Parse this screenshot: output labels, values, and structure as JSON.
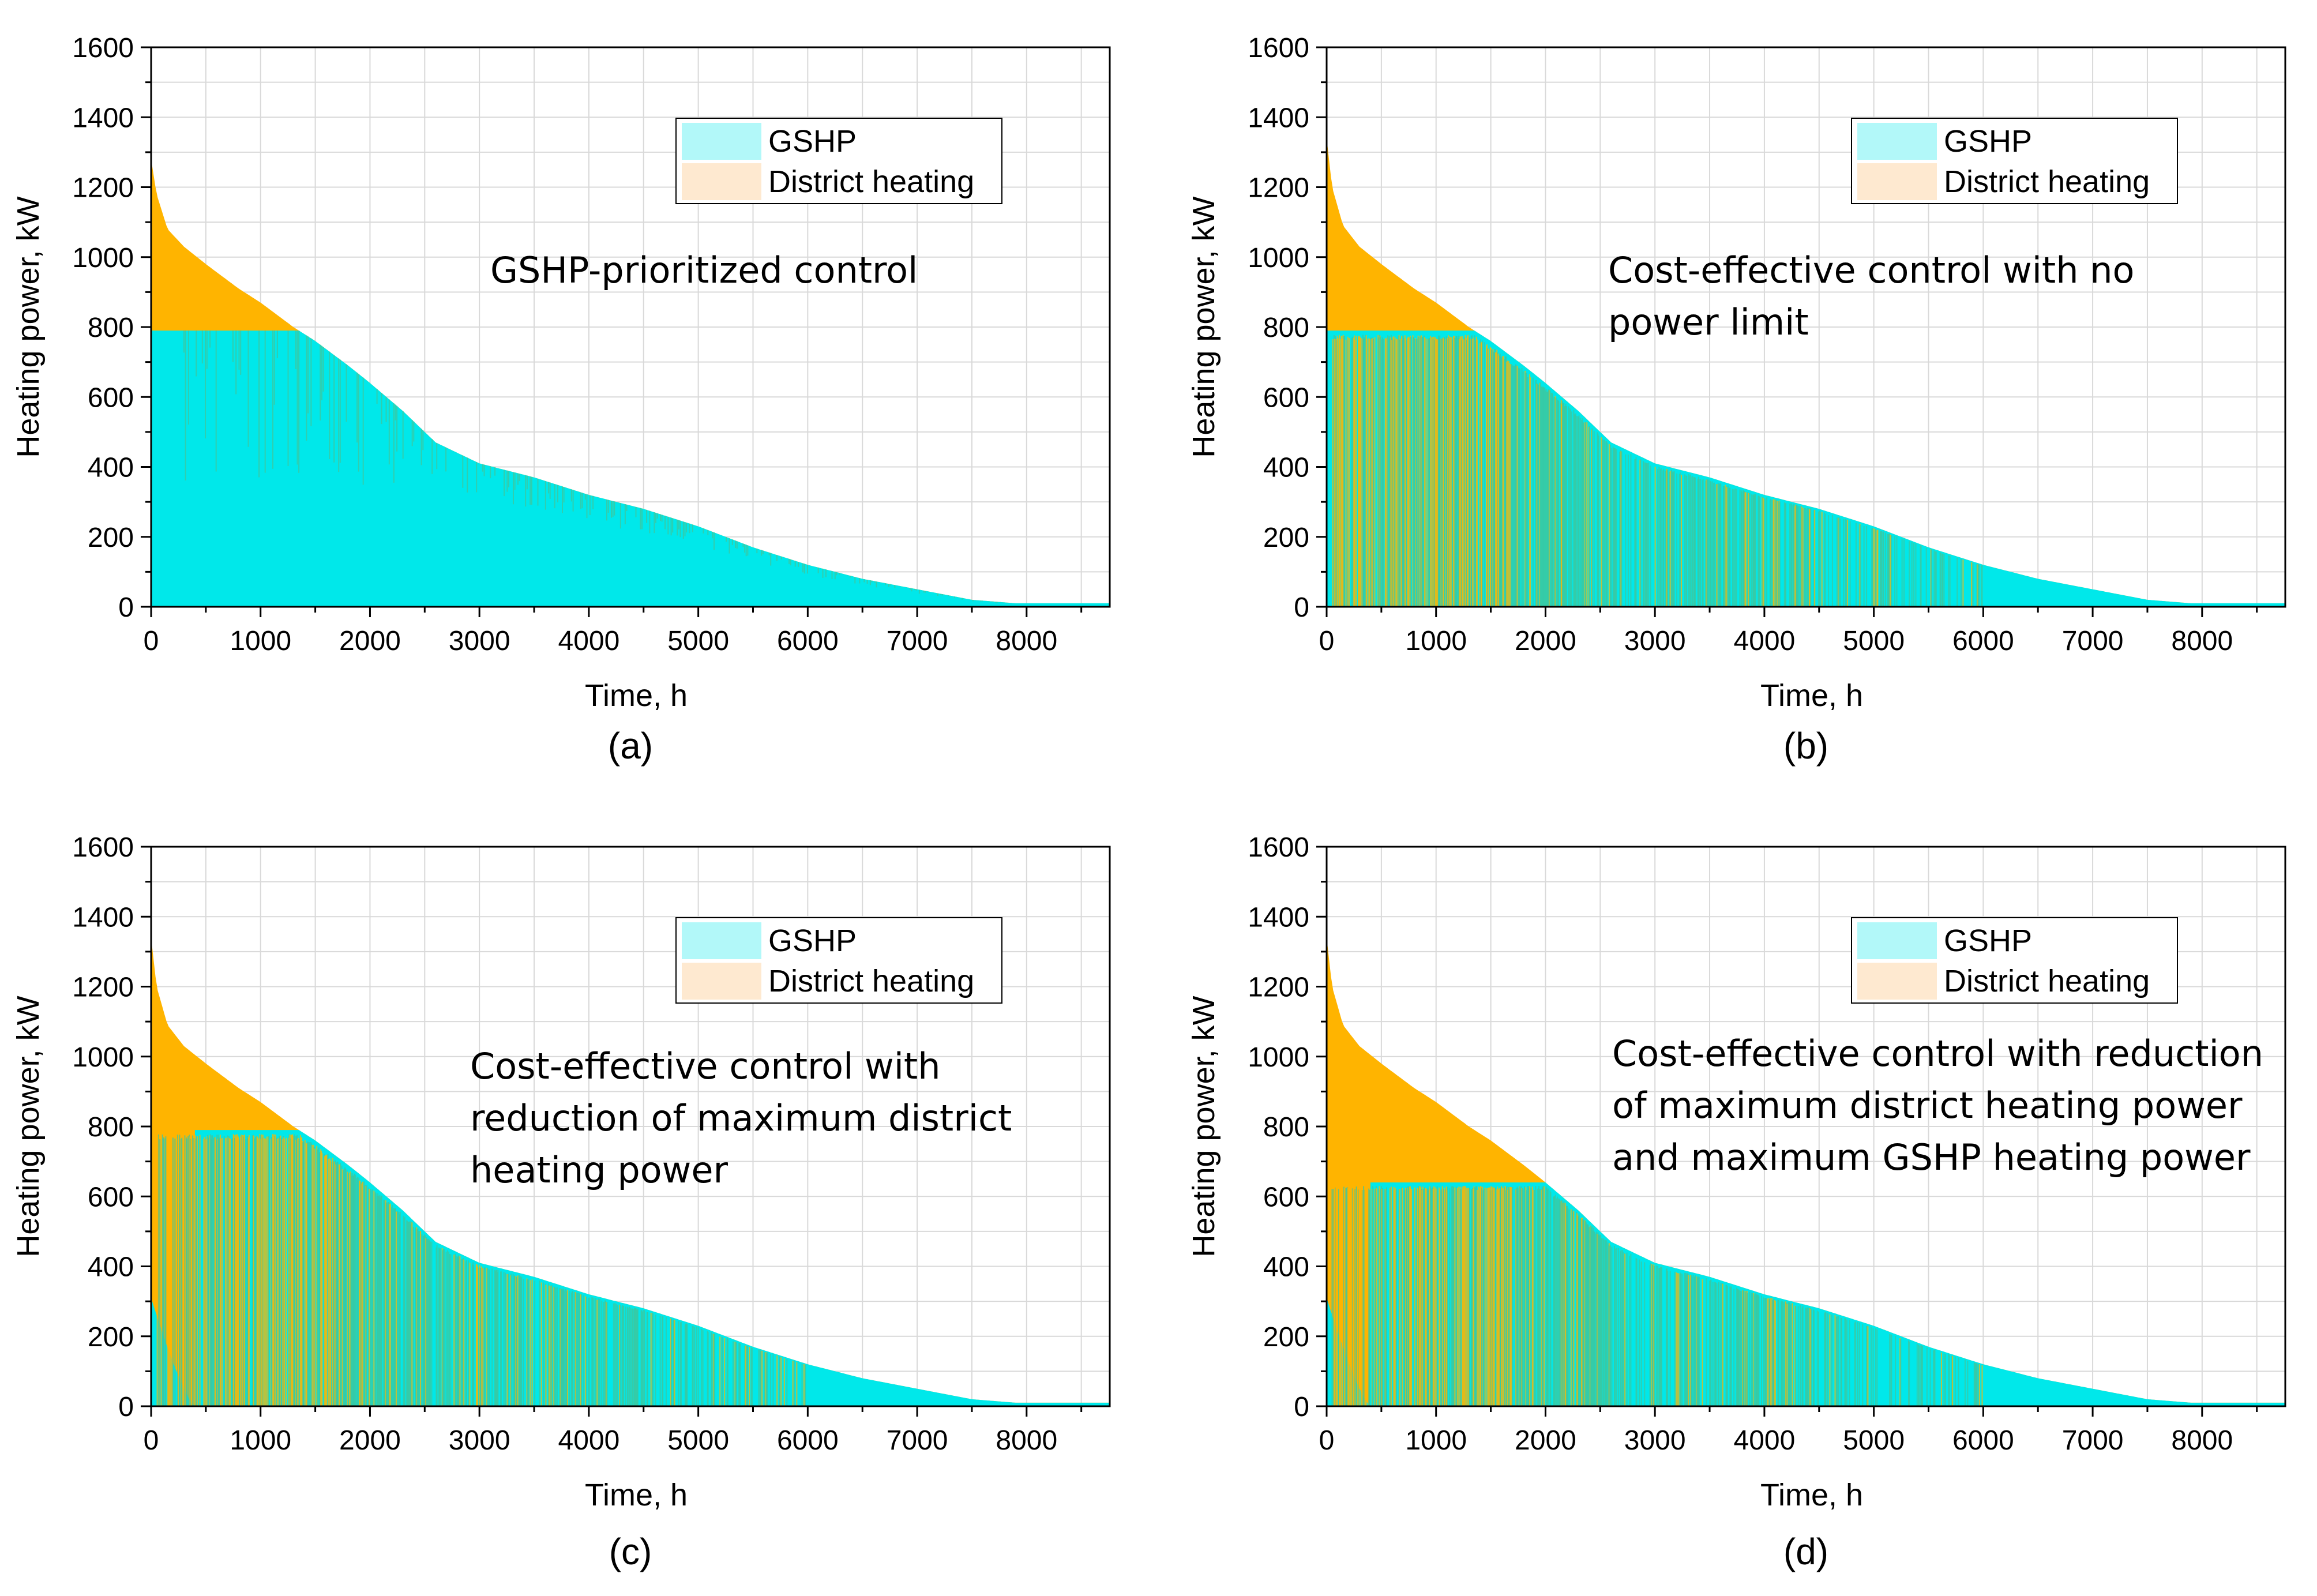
{
  "colors": {
    "gshp": "#00e8ea",
    "district": "#ffb400",
    "legend_gshp": "#b2f8f9",
    "legend_district": "#fee9d0",
    "mixed": "#3cc8a0",
    "grid": "#d9d9d9"
  },
  "chart_data": [
    {
      "id": "a",
      "type": "area",
      "panel_label": "(a)",
      "title": "",
      "annotation_lines": [
        "GSHP-prioritized control"
      ],
      "xlabel": "Time, h",
      "ylabel": "Heating power, kW",
      "xlim": [
        0,
        8760
      ],
      "ylim": [
        0,
        1600
      ],
      "xticks": [
        0,
        1000,
        2000,
        3000,
        4000,
        5000,
        6000,
        7000,
        8000
      ],
      "yticks": [
        0,
        200,
        400,
        600,
        800,
        1000,
        1200,
        1400,
        1600
      ],
      "legend": [
        "GSHP",
        "District heating"
      ],
      "legend_position": "top-right",
      "gshp_cap_kw": 790,
      "gshp_start_kw": 790,
      "gshp_fade_end_h": 0,
      "mixed_stripes_range": [],
      "total_load": {
        "x": [
          0,
          50,
          150,
          300,
          500,
          800,
          1000,
          1300,
          1500,
          1800,
          2000,
          2300,
          2600,
          2800,
          3000,
          3500,
          4000,
          4500,
          5000,
          5500,
          6000,
          6500,
          7000,
          7500,
          7900,
          8000,
          8760
        ],
        "y": [
          1280,
          1180,
          1080,
          1030,
          980,
          910,
          870,
          800,
          760,
          690,
          640,
          560,
          470,
          440,
          410,
          370,
          320,
          280,
          230,
          170,
          120,
          80,
          50,
          20,
          10,
          10,
          10
        ]
      }
    },
    {
      "id": "b",
      "type": "area",
      "panel_label": "(b)",
      "title": "",
      "annotation_lines": [
        "Cost-effective control with no",
        "power limit"
      ],
      "xlabel": "Time, h",
      "ylabel": "Heating power, kW",
      "xlim": [
        0,
        8760
      ],
      "ylim": [
        0,
        1600
      ],
      "xticks": [
        0,
        1000,
        2000,
        3000,
        4000,
        5000,
        6000,
        7000,
        8000
      ],
      "yticks": [
        0,
        200,
        400,
        600,
        800,
        1000,
        1200,
        1400,
        1600
      ],
      "legend": [
        "GSHP",
        "District heating"
      ],
      "legend_position": "top-right",
      "gshp_cap_kw": 790,
      "gshp_start_kw": 790,
      "gshp_fade_end_h": 0,
      "mixed_stripes_range": [
        50,
        6000
      ],
      "total_load": {
        "x": [
          0,
          50,
          150,
          300,
          500,
          800,
          1000,
          1300,
          1500,
          1800,
          2000,
          2300,
          2600,
          2800,
          3000,
          3500,
          4000,
          4500,
          5000,
          5500,
          6000,
          6500,
          7000,
          7500,
          7900,
          8000,
          8760
        ],
        "y": [
          1340,
          1200,
          1090,
          1030,
          980,
          910,
          870,
          800,
          760,
          690,
          640,
          560,
          470,
          440,
          410,
          370,
          320,
          280,
          230,
          170,
          120,
          80,
          50,
          20,
          10,
          10,
          10
        ]
      }
    },
    {
      "id": "c",
      "type": "area",
      "panel_label": "(c)",
      "title": "",
      "annotation_lines": [
        "Cost-effective control with",
        "reduction of maximum district",
        "heating power"
      ],
      "xlabel": "Time, h",
      "ylabel": "Heating power, kW",
      "xlim": [
        0,
        8760
      ],
      "ylim": [
        0,
        1600
      ],
      "xticks": [
        0,
        1000,
        2000,
        3000,
        4000,
        5000,
        6000,
        7000,
        8000
      ],
      "yticks": [
        0,
        200,
        400,
        600,
        800,
        1000,
        1200,
        1400,
        1600
      ],
      "legend": [
        "GSHP",
        "District heating"
      ],
      "legend_position": "top-right",
      "gshp_cap_kw": 790,
      "gshp_start_kw": 310,
      "gshp_fade_end_h": 400,
      "mixed_stripes_range": [
        50,
        6000
      ],
      "total_load": {
        "x": [
          0,
          50,
          150,
          300,
          500,
          800,
          1000,
          1300,
          1500,
          1800,
          2000,
          2300,
          2600,
          2800,
          3000,
          3500,
          4000,
          4500,
          5000,
          5500,
          6000,
          6500,
          7000,
          7500,
          7900,
          8000,
          8760
        ],
        "y": [
          1340,
          1200,
          1090,
          1030,
          980,
          910,
          870,
          800,
          760,
          690,
          640,
          560,
          470,
          440,
          410,
          370,
          320,
          280,
          230,
          170,
          120,
          80,
          50,
          20,
          10,
          10,
          10
        ]
      }
    },
    {
      "id": "d",
      "type": "area",
      "panel_label": "(d)",
      "title": "",
      "annotation_lines": [
        "Cost-effective control with reduction",
        "of maximum district heating power",
        "and maximum GSHP heating power"
      ],
      "xlabel": "Time, h",
      "ylabel": "Heating power, kW",
      "xlim": [
        0,
        8760
      ],
      "ylim": [
        0,
        1600
      ],
      "xticks": [
        0,
        1000,
        2000,
        3000,
        4000,
        5000,
        6000,
        7000,
        8000
      ],
      "yticks": [
        0,
        200,
        400,
        600,
        800,
        1000,
        1200,
        1400,
        1600
      ],
      "legend": [
        "GSHP",
        "District heating"
      ],
      "legend_position": "top-right",
      "gshp_cap_kw": 640,
      "gshp_start_kw": 310,
      "gshp_fade_end_h": 400,
      "mixed_stripes_range": [
        50,
        6000
      ],
      "total_load": {
        "x": [
          0,
          50,
          150,
          300,
          500,
          800,
          1000,
          1300,
          1500,
          1800,
          2000,
          2300,
          2600,
          2800,
          3000,
          3500,
          4000,
          4500,
          5000,
          5500,
          6000,
          6500,
          7000,
          7500,
          7900,
          8000,
          8760
        ],
        "y": [
          1340,
          1200,
          1090,
          1030,
          980,
          910,
          870,
          800,
          760,
          690,
          640,
          560,
          470,
          440,
          410,
          370,
          320,
          280,
          230,
          170,
          120,
          80,
          50,
          20,
          10,
          10,
          10
        ]
      }
    }
  ]
}
